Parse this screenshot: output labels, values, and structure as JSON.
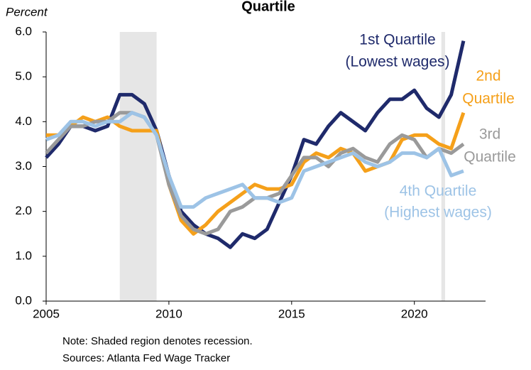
{
  "chart_data": {
    "type": "line",
    "title": "Quartile",
    "y_label": "Percent",
    "notes": [
      "Note: Shaded region denotes recession.",
      "Sources: Atlanta Fed Wage Tracker"
    ],
    "xlim": [
      2005,
      2022.9
    ],
    "ylim": [
      0,
      6
    ],
    "xticks": [
      2005,
      2010,
      2015,
      2020
    ],
    "yticks": [
      {
        "value": 0,
        "label": "0.0"
      },
      {
        "value": 1,
        "label": "1.0"
      },
      {
        "value": 2,
        "label": "2.0"
      },
      {
        "value": 3,
        "label": "3.0"
      },
      {
        "value": 4,
        "label": "4.0"
      },
      {
        "value": 5,
        "label": "5.0"
      },
      {
        "value": 6,
        "label": "6.0"
      }
    ],
    "recessions": [
      [
        2008,
        2009.5
      ],
      [
        2021.1,
        2021.25
      ]
    ],
    "recession_color": "#e6e6e6",
    "x": [
      2005,
      2005.5,
      2006,
      2006.5,
      2007,
      2007.5,
      2008,
      2008.5,
      2009,
      2009.5,
      2010,
      2010.5,
      2011,
      2011.5,
      2012,
      2012.5,
      2013,
      2013.5,
      2014,
      2014.5,
      2015,
      2015.5,
      2016,
      2016.5,
      2017,
      2017.5,
      2018,
      2018.5,
      2019,
      2019.5,
      2020,
      2020.5,
      2021,
      2021.5,
      2022
    ],
    "series": [
      {
        "name": [
          "1st Quartile",
          "(Lowest wages)"
        ],
        "color": "#1f2a6b",
        "values": [
          3.2,
          3.5,
          3.9,
          3.9,
          3.8,
          3.9,
          4.6,
          4.6,
          4.4,
          3.8,
          2.8,
          2.0,
          1.7,
          1.5,
          1.4,
          1.2,
          1.5,
          1.4,
          1.6,
          2.2,
          2.8,
          3.6,
          3.5,
          3.9,
          4.2,
          4.0,
          3.8,
          4.2,
          4.5,
          4.5,
          4.7,
          4.3,
          4.1,
          4.6,
          5.8
        ]
      },
      {
        "name": [
          "2nd",
          "Quartile"
        ],
        "color": "#f5a01a",
        "values": [
          3.7,
          3.7,
          3.9,
          4.1,
          4.0,
          4.1,
          3.9,
          3.8,
          3.8,
          3.8,
          2.6,
          1.8,
          1.5,
          1.7,
          2.0,
          2.2,
          2.4,
          2.6,
          2.5,
          2.5,
          2.6,
          3.1,
          3.3,
          3.2,
          3.4,
          3.3,
          2.9,
          3.0,
          3.1,
          3.6,
          3.7,
          3.7,
          3.5,
          3.4,
          4.2
        ]
      },
      {
        "name": [
          "3rd",
          "Quartile"
        ],
        "color": "#9a9a9a",
        "values": [
          3.3,
          3.6,
          3.9,
          3.9,
          4.0,
          4.0,
          4.2,
          4.2,
          4.1,
          3.7,
          2.6,
          1.9,
          1.6,
          1.5,
          1.6,
          2.0,
          2.1,
          2.3,
          2.3,
          2.4,
          2.8,
          3.2,
          3.2,
          3.0,
          3.3,
          3.4,
          3.2,
          3.1,
          3.5,
          3.7,
          3.6,
          3.2,
          3.4,
          3.3,
          3.5
        ]
      },
      {
        "name": [
          "4th Quartile",
          "(Highest wages)"
        ],
        "color": "#9dc3e6",
        "values": [
          3.6,
          3.7,
          4.0,
          4.0,
          3.9,
          4.0,
          4.0,
          4.2,
          4.1,
          3.7,
          2.8,
          2.1,
          2.1,
          2.3,
          2.4,
          2.5,
          2.6,
          2.3,
          2.3,
          2.2,
          2.3,
          2.9,
          3.0,
          3.1,
          3.2,
          3.3,
          3.1,
          3.0,
          3.1,
          3.3,
          3.3,
          3.2,
          3.4,
          2.8,
          2.9
        ]
      }
    ]
  }
}
